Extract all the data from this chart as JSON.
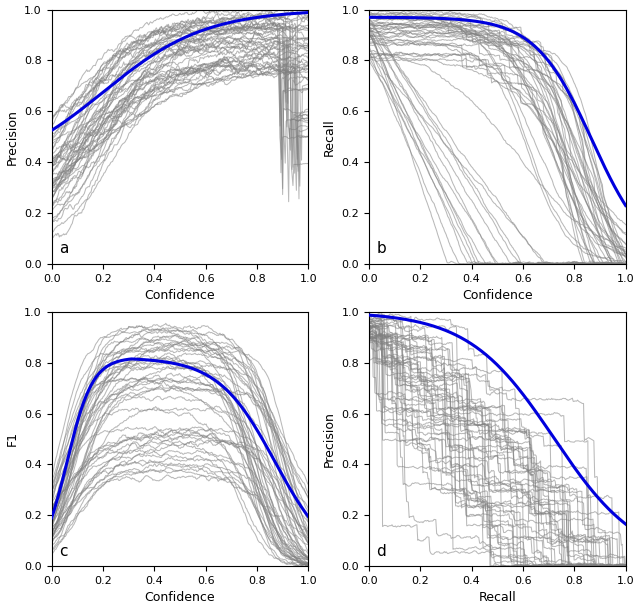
{
  "n_classes": 50,
  "fig_width": 6.4,
  "fig_height": 6.1,
  "dpi": 100,
  "gray_color": "#808080",
  "gray_alpha": 0.55,
  "blue_color": "#0000DD",
  "blue_lw": 2.2,
  "gray_lw": 0.75,
  "subplots": [
    {
      "label": "a",
      "xlabel": "Confidence",
      "ylabel": "Precision",
      "xlim": [
        0,
        1
      ],
      "ylim": [
        0,
        1
      ]
    },
    {
      "label": "b",
      "xlabel": "Confidence",
      "ylabel": "Recall",
      "xlim": [
        0,
        1
      ],
      "ylim": [
        0,
        1
      ]
    },
    {
      "label": "c",
      "xlabel": "Confidence",
      "ylabel": "F1",
      "xlim": [
        0,
        1
      ],
      "ylim": [
        0,
        1
      ]
    },
    {
      "label": "d",
      "xlabel": "Recall",
      "ylabel": "Precision",
      "xlim": [
        0,
        1
      ],
      "ylim": [
        0,
        1
      ]
    }
  ]
}
